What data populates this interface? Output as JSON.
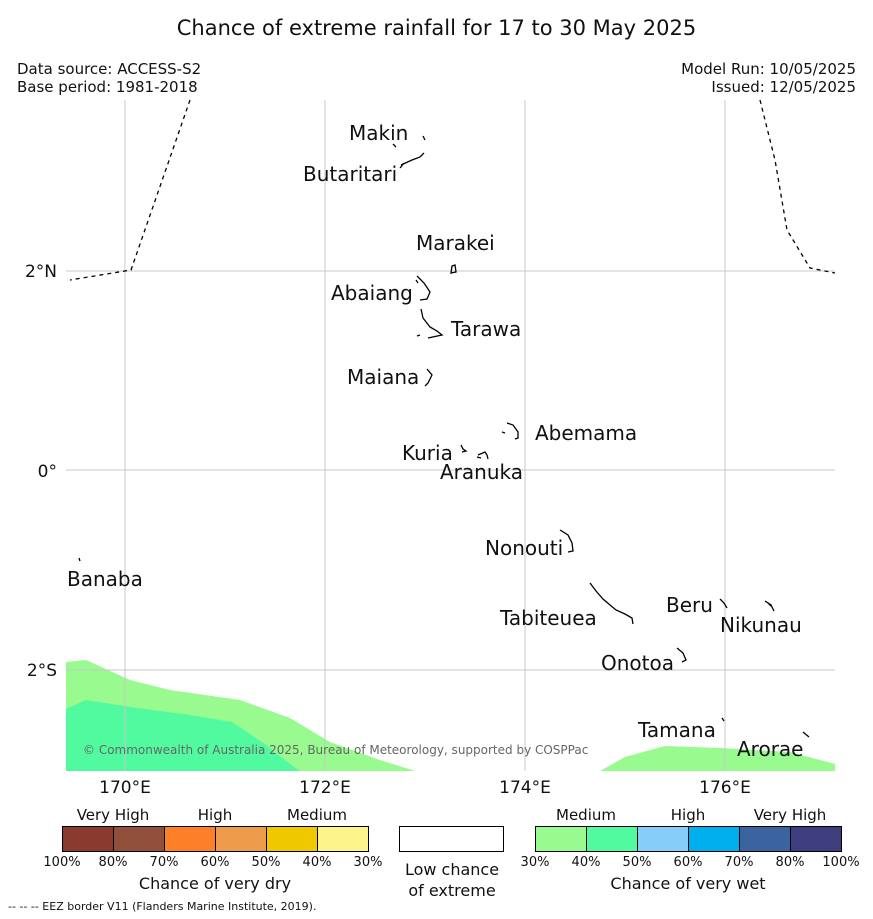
{
  "title": "Chance of extreme rainfall for 17 to 30 May 2025",
  "meta": {
    "source": "Data source: ACCESS-S2",
    "base": "Base period: 1981-2018",
    "run": "Model Run: 10/05/2025",
    "issued": "Issued: 12/05/2025"
  },
  "map": {
    "lat_labels": [
      "2°N",
      "0°",
      "2°S"
    ],
    "lon_labels": [
      "170°E",
      "172°E",
      "174°E",
      "176°E"
    ],
    "places": [
      "Makin",
      "Butaritari",
      "Marakei",
      "Abaiang",
      "Tarawa",
      "Maiana",
      "Abemama",
      "Kuria",
      "Aranuka",
      "Nonouti",
      "Banaba",
      "Beru",
      "Nikunau",
      "Tabiteuea",
      "Onotoa",
      "Tamana",
      "Arorae"
    ],
    "copyright": "© Commonwealth of Australia 2025, Bureau of Meteorology, supported by COSPPac"
  },
  "legend": {
    "dry": {
      "heads": [
        "Very High",
        "High",
        "Medium"
      ],
      "colors": [
        "#8b3a2f",
        "#8f4f3b",
        "#fd7f28",
        "#ee9b4c",
        "#f0c800",
        "#fef48c"
      ],
      "ticks": [
        "100%",
        "80%",
        "70%",
        "60%",
        "50%",
        "40%",
        "30%"
      ],
      "caption": "Chance of very dry"
    },
    "low": {
      "line1": "Low chance",
      "line2": "of extreme",
      "color": "#ffffff"
    },
    "wet": {
      "heads": [
        "Medium",
        "High",
        "Very High"
      ],
      "colors": [
        "#99fa90",
        "#52fa9f",
        "#86cdfa",
        "#00b0ee",
        "#3a63a0",
        "#3e3d7d"
      ],
      "ticks": [
        "30%",
        "40%",
        "50%",
        "60%",
        "70%",
        "80%",
        "100%"
      ],
      "caption": "Chance of very wet"
    }
  },
  "footnote": "--  --  -- EEZ border V11 (Flanders Marine Institute, 2019)."
}
